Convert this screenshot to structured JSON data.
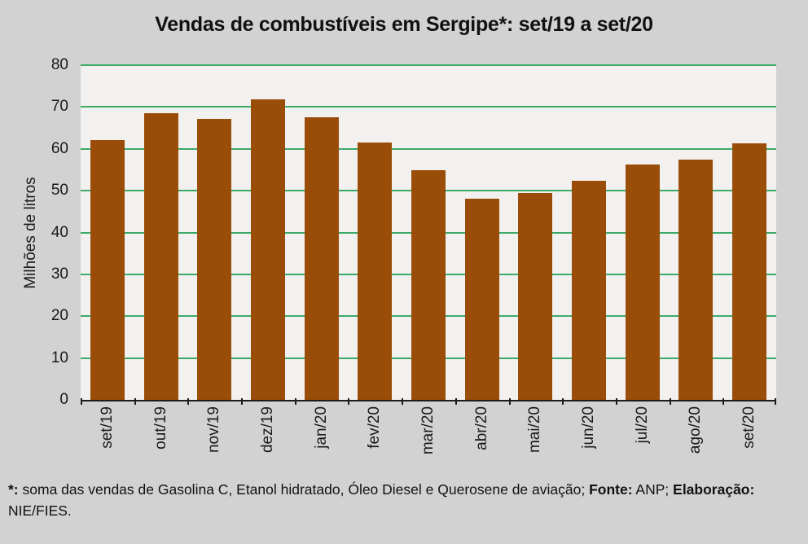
{
  "header": {
    "title": "Vendas de combustíveis em Sergipe*: set/19 a set/20"
  },
  "chart_data": {
    "type": "bar",
    "title": "Vendas de combustíveis em Sergipe*: set/19 a set/20",
    "categories": [
      "set/19",
      "out/19",
      "nov/19",
      "dez/19",
      "jan/20",
      "fev/20",
      "mar/20",
      "abr/20",
      "mai/20",
      "jun/20",
      "jul/20",
      "ago/20",
      "set/20"
    ],
    "values": [
      62.0,
      68.6,
      67.2,
      71.9,
      67.6,
      61.6,
      54.8,
      48.0,
      49.4,
      52.4,
      56.2,
      57.5,
      61.3
    ],
    "xlabel": "",
    "ylabel": "Milhões de litros",
    "ylim": [
      0,
      80
    ],
    "yticks": [
      0,
      10,
      20,
      30,
      40,
      50,
      60,
      70,
      80
    ],
    "grid": "horizontal",
    "legend": "none",
    "colors": {
      "bar": "#9a4d08",
      "gridline": "#3caa69",
      "plot_bg": "#f2f1ef",
      "page_bg": "#d2d2d2",
      "axis": "#1c1c1c",
      "text": "#1a1a1a"
    }
  },
  "footnote": {
    "segments": [
      {
        "text": "*:",
        "bold": true
      },
      {
        "text": " soma das vendas de Gasolina C, Etanol hidratado, Óleo Diesel e Querosene de aviação; ",
        "bold": false
      },
      {
        "text": "Fonte:",
        "bold": true
      },
      {
        "text": " ANP; ",
        "bold": false
      },
      {
        "text": "Elaboração:",
        "bold": true
      },
      {
        "text": " NIE/FIES.",
        "bold": false
      }
    ]
  }
}
